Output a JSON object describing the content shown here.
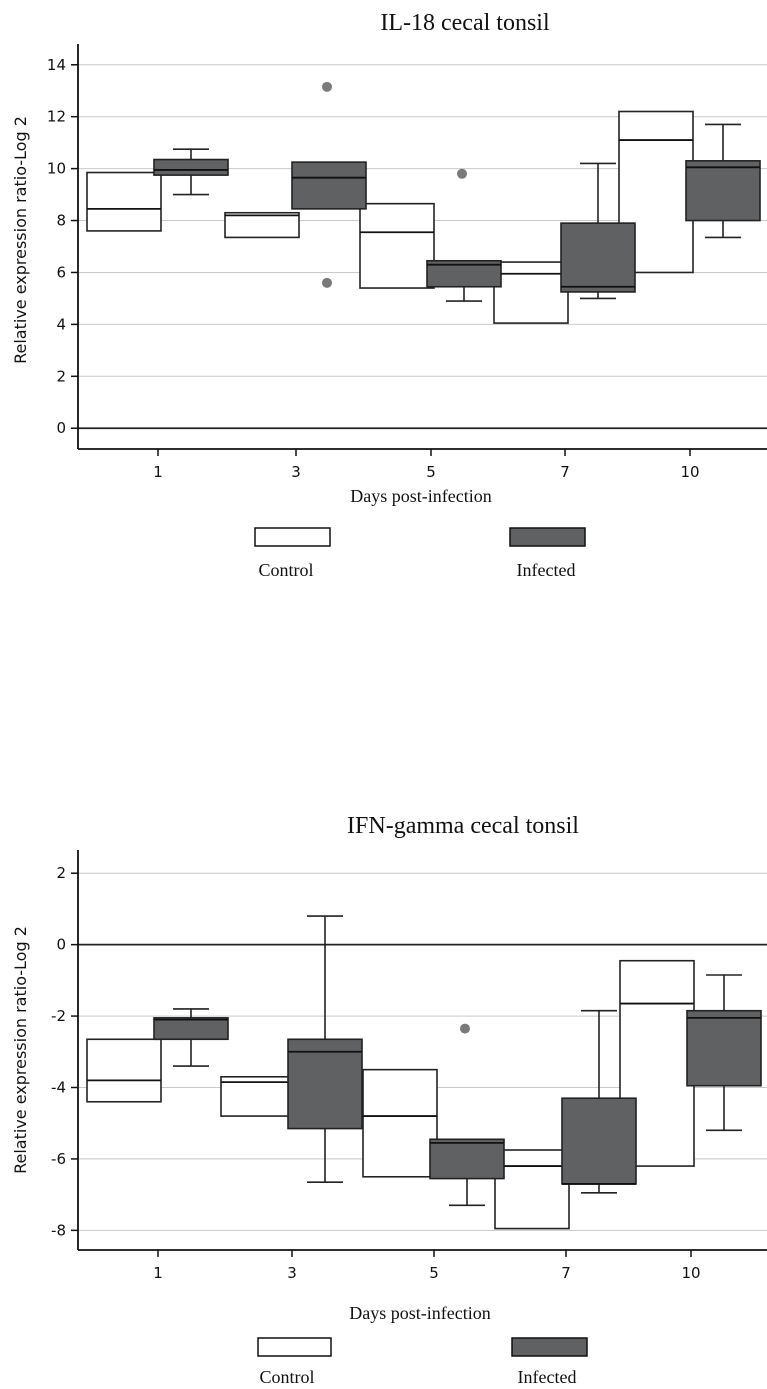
{
  "chart_data": [
    {
      "type": "boxplot",
      "title": "IL-18 cecal tonsil",
      "xlabel": "Days post-infection",
      "ylabel": "Relative expression ratio-Log 2",
      "ylim": [
        -0.8,
        14.8
      ],
      "yticks": [
        0,
        2,
        4,
        6,
        8,
        10,
        12,
        14
      ],
      "zero_line": true,
      "grid": true,
      "categories": [
        "1",
        "3",
        "5",
        "7",
        "10"
      ],
      "legend": {
        "position": "bottom"
      },
      "series": [
        {
          "name": "Control",
          "color": "#ffffff",
          "boxes": [
            {
              "q1": 7.6,
              "median": 8.45,
              "q3": 9.85,
              "whisker_low": 7.6,
              "whisker_high": 9.85,
              "outliers": []
            },
            {
              "q1": 7.35,
              "median": 8.2,
              "q3": 8.3,
              "whisker_low": 7.35,
              "whisker_high": 8.3,
              "outliers": []
            },
            {
              "q1": 5.4,
              "median": 7.55,
              "q3": 8.65,
              "whisker_low": 5.4,
              "whisker_high": 8.65,
              "outliers": []
            },
            {
              "q1": 4.05,
              "median": 5.95,
              "q3": 6.4,
              "whisker_low": 4.05,
              "whisker_high": 6.4,
              "outliers": []
            },
            {
              "q1": 6.0,
              "median": 11.1,
              "q3": 12.2,
              "whisker_low": 6.0,
              "whisker_high": 12.2,
              "outliers": []
            }
          ]
        },
        {
          "name": "Infected",
          "color": "#5f6163",
          "boxes": [
            {
              "q1": 9.75,
              "median": 9.95,
              "q3": 10.35,
              "whisker_low": 9.0,
              "whisker_high": 10.75,
              "outliers": []
            },
            {
              "q1": 8.45,
              "median": 9.65,
              "q3": 10.25,
              "whisker_low": 8.45,
              "whisker_high": 10.25,
              "outliers": [
                13.15,
                5.6
              ]
            },
            {
              "q1": 5.45,
              "median": 6.3,
              "q3": 6.45,
              "whisker_low": 4.9,
              "whisker_high": 6.45,
              "outliers": [
                9.8
              ]
            },
            {
              "q1": 5.25,
              "median": 5.45,
              "q3": 7.9,
              "whisker_low": 5.0,
              "whisker_high": 10.2,
              "outliers": []
            },
            {
              "q1": 8.0,
              "median": 10.05,
              "q3": 10.3,
              "whisker_low": 7.35,
              "whisker_high": 11.7,
              "outliers": []
            }
          ]
        }
      ]
    },
    {
      "type": "boxplot",
      "title": "IFN-gamma cecal tonsil",
      "xlabel": "Days post-infection",
      "ylabel": "Relative expression ratio-Log 2",
      "ylim": [
        -8.55,
        2.65
      ],
      "yticks": [
        -8,
        -6,
        -4,
        -2,
        0,
        2
      ],
      "zero_line": true,
      "grid": true,
      "categories": [
        "1",
        "3",
        "5",
        "7",
        "10"
      ],
      "legend": {
        "position": "bottom"
      },
      "series": [
        {
          "name": "Control",
          "color": "#ffffff",
          "boxes": [
            {
              "q1": -4.4,
              "median": -3.8,
              "q3": -2.65,
              "whisker_low": -4.4,
              "whisker_high": -2.65,
              "outliers": []
            },
            {
              "q1": -4.8,
              "median": -3.85,
              "q3": -3.7,
              "whisker_low": -4.8,
              "whisker_high": -3.7,
              "outliers": []
            },
            {
              "q1": -6.5,
              "median": -4.8,
              "q3": -3.5,
              "whisker_low": -6.5,
              "whisker_high": -3.5,
              "outliers": []
            },
            {
              "q1": -7.95,
              "median": -6.2,
              "q3": -5.75,
              "whisker_low": -7.95,
              "whisker_high": -5.75,
              "outliers": []
            },
            {
              "q1": -6.2,
              "median": -1.65,
              "q3": -0.45,
              "whisker_low": -6.2,
              "whisker_high": -0.45,
              "outliers": []
            }
          ]
        },
        {
          "name": "Infected",
          "color": "#5f6163",
          "boxes": [
            {
              "q1": -2.65,
              "median": -2.1,
              "q3": -2.05,
              "whisker_low": -3.4,
              "whisker_high": -1.8,
              "outliers": []
            },
            {
              "q1": -5.15,
              "median": -3.0,
              "q3": -2.65,
              "whisker_low": -6.65,
              "whisker_high": 0.8,
              "outliers": []
            },
            {
              "q1": -6.55,
              "median": -5.55,
              "q3": -5.45,
              "whisker_low": -7.3,
              "whisker_high": -5.45,
              "outliers": [
                -2.35
              ]
            },
            {
              "q1": -6.7,
              "median": -6.7,
              "q3": -4.3,
              "whisker_low": -6.95,
              "whisker_high": -1.85,
              "outliers": []
            },
            {
              "q1": -3.95,
              "median": -2.05,
              "q3": -1.85,
              "whisker_low": -5.2,
              "whisker_high": -0.85,
              "outliers": []
            }
          ]
        }
      ]
    }
  ]
}
